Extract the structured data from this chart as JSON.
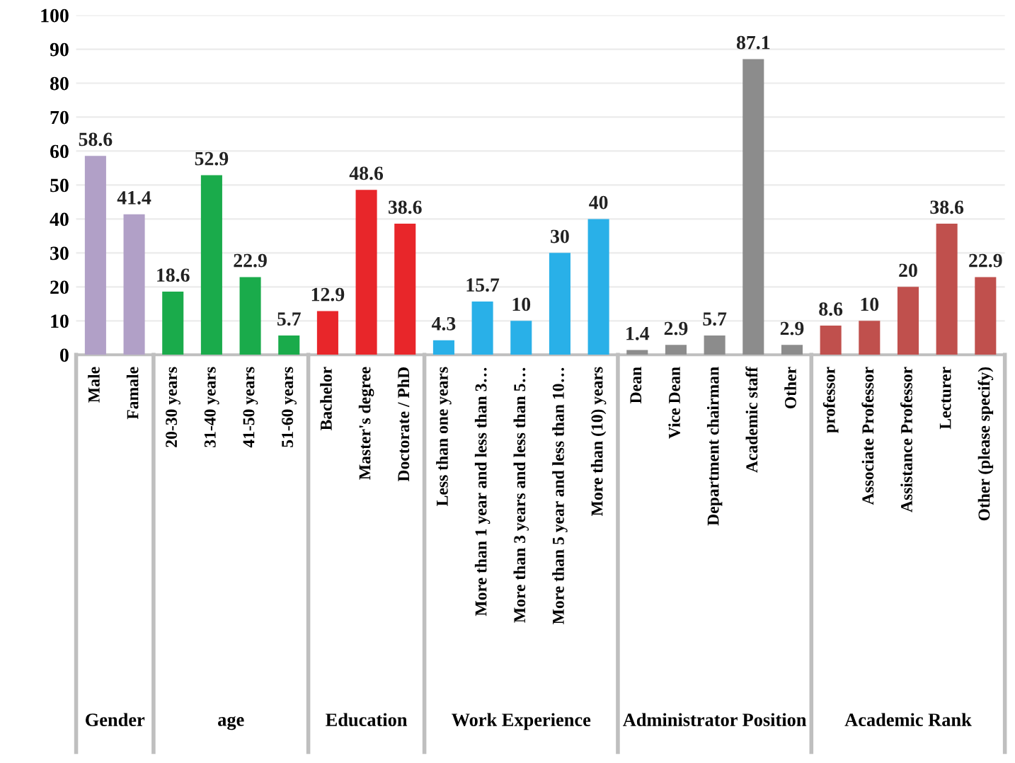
{
  "chart_data": {
    "type": "bar",
    "categories": [
      "Male",
      "Famale",
      "20-30 years",
      "31-40 years",
      "41-50 years",
      "51-60 years",
      "Bachelor",
      "Master's degree",
      "Doctorate / PhD",
      "Less than one years",
      "More than 1 year and less than 3…",
      "More than 3 years and less than 5…",
      "More than 5 year and less than 10…",
      "More than (10) years",
      "Dean",
      "Vice Dean",
      "Department chairman",
      "Academic staff",
      "Other",
      "professor",
      "Associate Professor",
      "Assistance Professor",
      "Lecturer",
      "Other (please specify)"
    ],
    "values": [
      58.6,
      41.4,
      18.6,
      52.9,
      22.9,
      5.7,
      12.9,
      48.6,
      38.6,
      4.3,
      15.7,
      10,
      30,
      40,
      1.4,
      2.9,
      5.7,
      87.1,
      2.9,
      8.6,
      10,
      20,
      38.6,
      22.9
    ],
    "colors": [
      "#b1a0c7",
      "#b1a0c7",
      "#1aab4b",
      "#1aab4b",
      "#1aab4b",
      "#1aab4b",
      "#e8262a",
      "#e8262a",
      "#e8262a",
      "#29b0e8",
      "#29b0e8",
      "#29b0e8",
      "#29b0e8",
      "#29b0e8",
      "#8c8c8c",
      "#8c8c8c",
      "#8c8c8c",
      "#8c8c8c",
      "#8c8c8c",
      "#c0504d",
      "#c0504d",
      "#c0504d",
      "#c0504d",
      "#c0504d"
    ],
    "annotations": [
      "Gender",
      "age",
      "Education",
      "Work Experience",
      "Administrator Position",
      "Academic Rank"
    ],
    "ylim": [
      0,
      100
    ],
    "yticks": [
      0,
      10,
      20,
      30,
      40,
      50,
      60,
      70,
      80,
      90,
      100
    ],
    "grid": "y",
    "data_labels": true
  }
}
